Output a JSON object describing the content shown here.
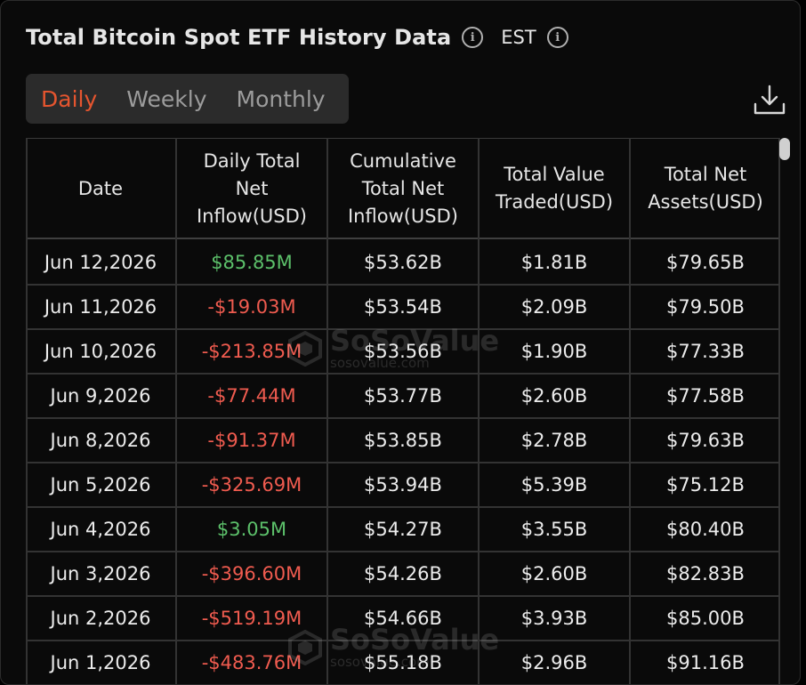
{
  "header": {
    "title": "Total Bitcoin Spot ETF History Data",
    "timezone": "EST",
    "info_icon": "i"
  },
  "tabs": [
    {
      "label": "Daily",
      "active": true
    },
    {
      "label": "Weekly",
      "active": false
    },
    {
      "label": "Monthly",
      "active": false
    }
  ],
  "toolbar": {
    "download_icon": "download-icon"
  },
  "table": {
    "columns": [
      "Date",
      "Daily Total Net Inflow(USD)",
      "Cumulative Total Net Inflow(USD)",
      "Total Value Traded(USD)",
      "Total Net Assets(USD)"
    ],
    "rows": [
      {
        "date": "Jun 12,2026",
        "daily": "$85.85M",
        "sign": "pos",
        "cumulative": "$53.62B",
        "traded": "$1.81B",
        "assets": "$79.65B"
      },
      {
        "date": "Jun 11,2026",
        "daily": "-$19.03M",
        "sign": "neg",
        "cumulative": "$53.54B",
        "traded": "$2.09B",
        "assets": "$79.50B"
      },
      {
        "date": "Jun 10,2026",
        "daily": "-$213.85M",
        "sign": "neg",
        "cumulative": "$53.56B",
        "traded": "$1.90B",
        "assets": "$77.33B"
      },
      {
        "date": "Jun 9,2026",
        "daily": "-$77.44M",
        "sign": "neg",
        "cumulative": "$53.77B",
        "traded": "$2.60B",
        "assets": "$77.58B"
      },
      {
        "date": "Jun 8,2026",
        "daily": "-$91.37M",
        "sign": "neg",
        "cumulative": "$53.85B",
        "traded": "$2.78B",
        "assets": "$79.63B"
      },
      {
        "date": "Jun 5,2026",
        "daily": "-$325.69M",
        "sign": "neg",
        "cumulative": "$53.94B",
        "traded": "$5.39B",
        "assets": "$75.12B"
      },
      {
        "date": "Jun 4,2026",
        "daily": "$3.05M",
        "sign": "pos",
        "cumulative": "$54.27B",
        "traded": "$3.55B",
        "assets": "$80.40B"
      },
      {
        "date": "Jun 3,2026",
        "daily": "-$396.60M",
        "sign": "neg",
        "cumulative": "$54.26B",
        "traded": "$2.60B",
        "assets": "$82.83B"
      },
      {
        "date": "Jun 2,2026",
        "daily": "-$519.19M",
        "sign": "neg",
        "cumulative": "$54.66B",
        "traded": "$3.93B",
        "assets": "$85.00B"
      },
      {
        "date": "Jun 1,2026",
        "daily": "-$483.76M",
        "sign": "neg",
        "cumulative": "$55.18B",
        "traded": "$2.96B",
        "assets": "$91.16B"
      }
    ]
  },
  "watermark": {
    "brand": "SoSoValue",
    "domain": "sosovalue.com"
  },
  "colors": {
    "accent": "#e5552f",
    "positive": "#5cc06a",
    "negative": "#ef5b4f",
    "background": "#0a0a0a"
  }
}
